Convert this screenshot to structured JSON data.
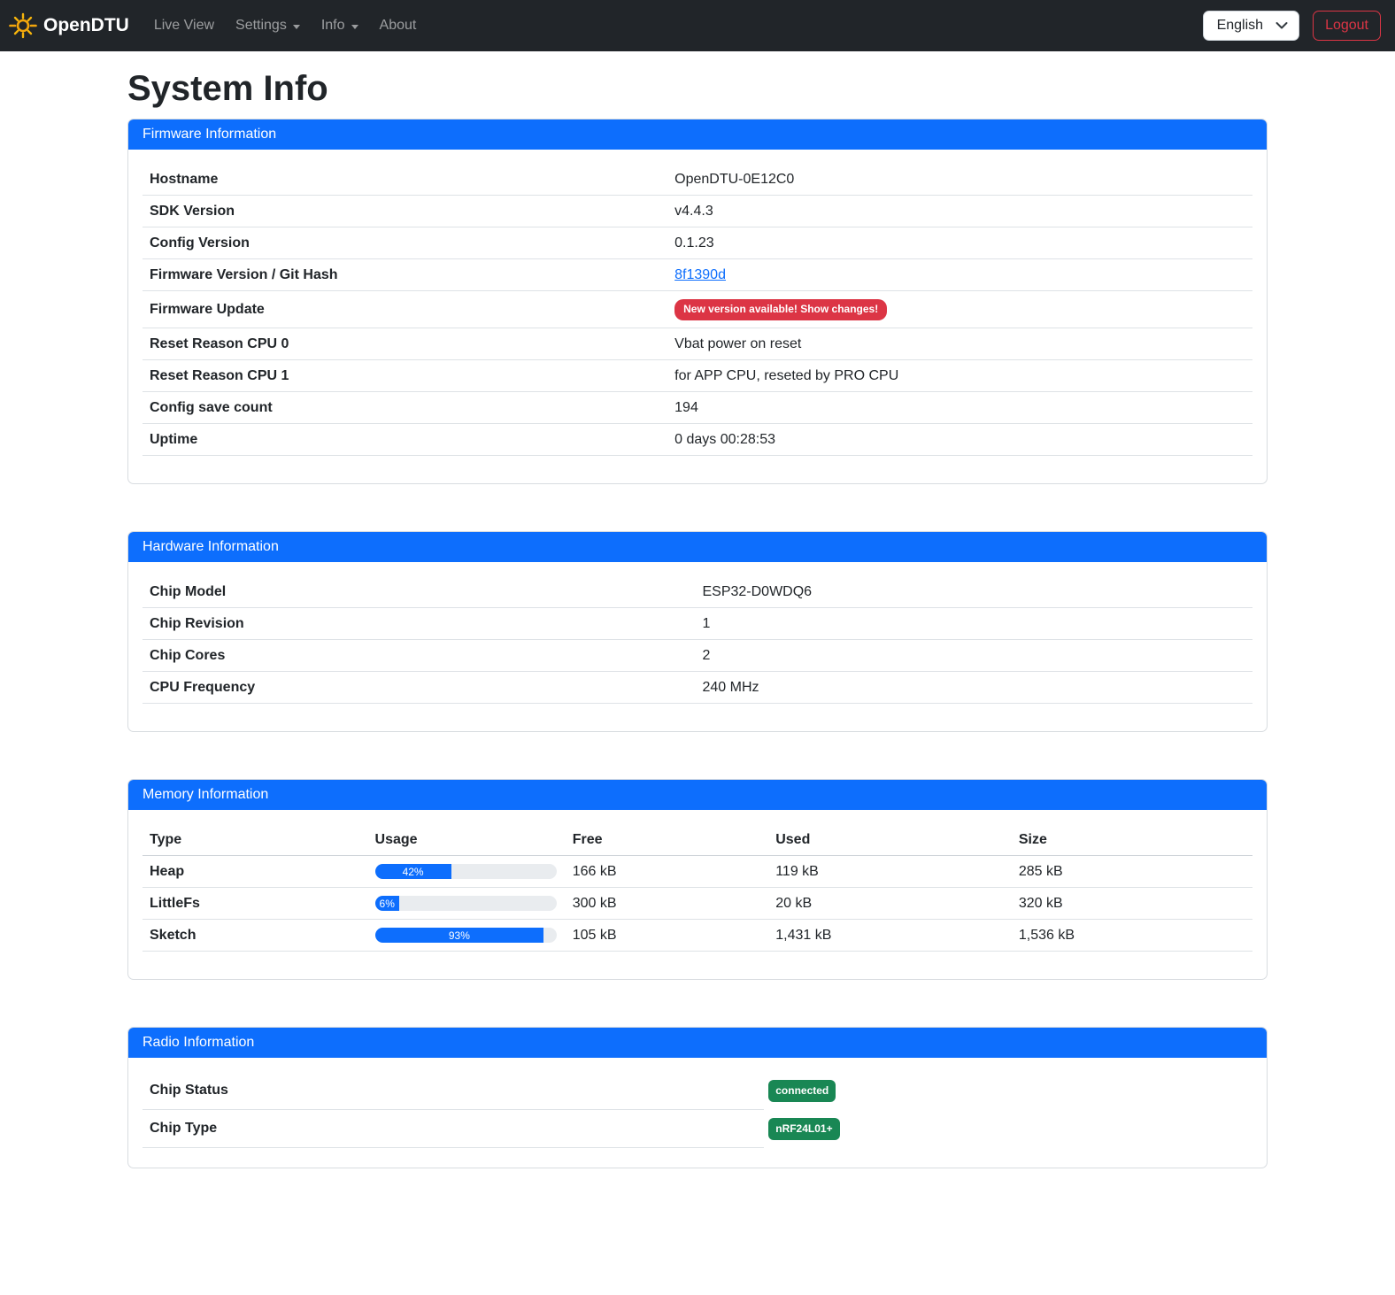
{
  "colors": {
    "primary": "#0d6efd",
    "danger": "#dc3545",
    "success": "#198754",
    "navbar_bg": "#212529"
  },
  "icons": {
    "brand": "sun-icon",
    "nav_dropdown": "chevron-down-icon",
    "language_select": "chevron-down-icon"
  },
  "navbar": {
    "brand": "OpenDTU",
    "items": [
      {
        "label": "Live View"
      },
      {
        "label": "Settings"
      },
      {
        "label": "Info"
      },
      {
        "label": "About"
      }
    ],
    "language_selected": "English",
    "logout_label": "Logout"
  },
  "page_title": "System Info",
  "firmware": {
    "header": "Firmware Information",
    "rows": [
      {
        "label": "Hostname",
        "value": "OpenDTU-0E12C0"
      },
      {
        "label": "SDK Version",
        "value": "v4.4.3"
      },
      {
        "label": "Config Version",
        "value": "0.1.23"
      },
      {
        "label": "Firmware Version / Git Hash",
        "value": "8f1390d"
      },
      {
        "label": "Firmware Update",
        "value": "New version available! Show changes!"
      },
      {
        "label": "Reset Reason CPU 0",
        "value": "Vbat power on reset"
      },
      {
        "label": "Reset Reason CPU 1",
        "value": "for APP CPU, reseted by PRO CPU"
      },
      {
        "label": "Config save count",
        "value": "194"
      },
      {
        "label": "Uptime",
        "value": "0 days 00:28:53"
      }
    ]
  },
  "hardware": {
    "header": "Hardware Information",
    "rows": [
      {
        "label": "Chip Model",
        "value": "ESP32-D0WDQ6"
      },
      {
        "label": "Chip Revision",
        "value": "1"
      },
      {
        "label": "Chip Cores",
        "value": "2"
      },
      {
        "label": "CPU Frequency",
        "value": "240 MHz"
      }
    ]
  },
  "memory": {
    "header": "Memory Information",
    "columns": [
      "Type",
      "Usage",
      "Free",
      "Used",
      "Size"
    ],
    "rows": [
      {
        "type": "Heap",
        "usage_pct": 42,
        "usage_label": "42%",
        "free": "166 kB",
        "used": "119 kB",
        "size": "285 kB"
      },
      {
        "type": "LittleFs",
        "usage_pct": 6,
        "usage_label": "6%",
        "free": "300 kB",
        "used": "20 kB",
        "size": "320 kB"
      },
      {
        "type": "Sketch",
        "usage_pct": 93,
        "usage_label": "93%",
        "free": "105 kB",
        "used": "1,431 kB",
        "size": "1,536 kB"
      }
    ]
  },
  "radio": {
    "header": "Radio Information",
    "rows": [
      {
        "label": "Chip Status",
        "value": "connected"
      },
      {
        "label": "Chip Type",
        "value": "nRF24L01+"
      }
    ]
  }
}
